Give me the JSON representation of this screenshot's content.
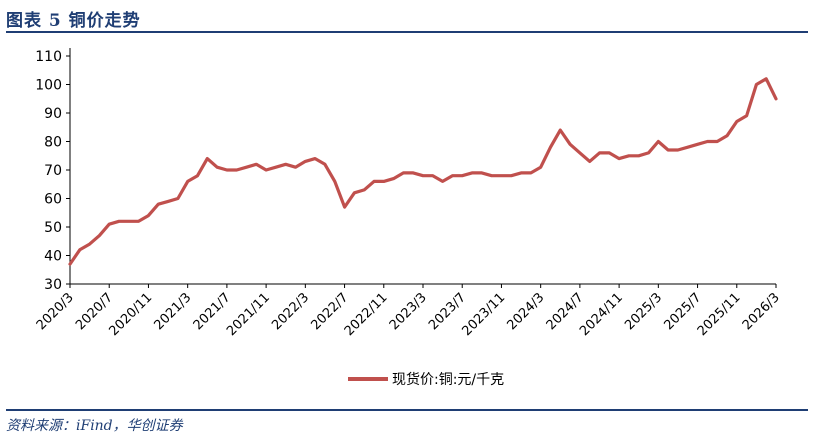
{
  "figure": {
    "title": "图表 5   铜价走势",
    "source": "资料来源：iFind，华创证券"
  },
  "colors": {
    "accent": "#1f3e74",
    "series": "#c0504d"
  },
  "chart_data": {
    "type": "line",
    "title": "",
    "xlabel": "",
    "ylabel": "",
    "ylim": [
      30,
      110
    ],
    "yticks": [
      "30",
      "40",
      "50",
      "60",
      "70",
      "80",
      "90",
      "100",
      "110"
    ],
    "xticks": [
      "2020/3",
      "2020/7",
      "2020/11",
      "2021/3",
      "2021/7",
      "2021/11",
      "2022/3",
      "2022/7",
      "2022/11",
      "2023/3",
      "2023/7",
      "2023/11",
      "2024/3",
      "2024/7",
      "2024/11",
      "2025/3",
      "2025/7",
      "2025/11",
      "2026/3"
    ],
    "grid": false,
    "legend_position": "bottom-center",
    "series": [
      {
        "name": "现货价:铜:元/千克",
        "x": [
          "2020/3",
          "2020/4",
          "2020/5",
          "2020/6",
          "2020/7",
          "2020/8",
          "2020/9",
          "2020/10",
          "2020/11",
          "2020/12",
          "2021/1",
          "2021/2",
          "2021/3",
          "2021/4",
          "2021/5",
          "2021/6",
          "2021/7",
          "2021/8",
          "2021/9",
          "2021/10",
          "2021/11",
          "2021/12",
          "2022/1",
          "2022/2",
          "2022/3",
          "2022/4",
          "2022/5",
          "2022/6",
          "2022/7",
          "2022/8",
          "2022/9",
          "2022/10",
          "2022/11",
          "2022/12",
          "2023/1",
          "2023/2",
          "2023/3",
          "2023/4",
          "2023/5",
          "2023/6",
          "2023/7",
          "2023/8",
          "2023/9",
          "2023/10",
          "2023/11",
          "2023/12",
          "2024/1",
          "2024/2",
          "2024/3",
          "2024/4",
          "2024/5",
          "2024/6",
          "2024/7",
          "2024/8",
          "2024/9",
          "2024/10",
          "2024/11",
          "2024/12",
          "2025/1",
          "2025/2",
          "2025/3",
          "2025/4",
          "2025/5",
          "2025/6",
          "2025/7",
          "2025/8",
          "2025/9",
          "2025/10",
          "2025/11",
          "2025/12",
          "2026/1",
          "2026/2",
          "2026/3"
        ],
        "values": [
          37,
          42,
          44,
          47,
          51,
          52,
          52,
          52,
          54,
          58,
          59,
          60,
          66,
          68,
          74,
          71,
          70,
          70,
          71,
          72,
          70,
          71,
          72,
          71,
          73,
          74,
          72,
          66,
          57,
          62,
          63,
          66,
          66,
          67,
          69,
          69,
          68,
          68,
          66,
          68,
          68,
          69,
          69,
          68,
          68,
          68,
          69,
          69,
          71,
          78,
          84,
          79,
          76,
          73,
          76,
          76,
          74,
          75,
          75,
          76,
          80,
          77,
          77,
          78,
          79,
          80,
          80,
          82,
          87,
          89,
          100,
          102,
          95
        ]
      }
    ]
  }
}
